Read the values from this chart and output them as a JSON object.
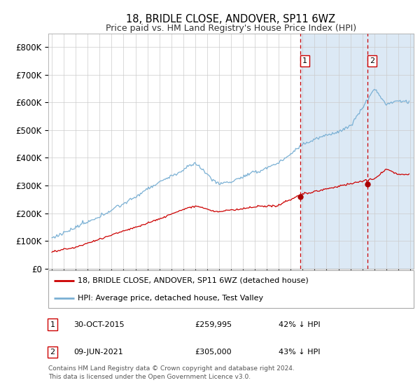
{
  "title": "18, BRIDLE CLOSE, ANDOVER, SP11 6WZ",
  "subtitle": "Price paid vs. HM Land Registry's House Price Index (HPI)",
  "legend_line1": "18, BRIDLE CLOSE, ANDOVER, SP11 6WZ (detached house)",
  "legend_line2": "HPI: Average price, detached house, Test Valley",
  "transaction1_date": "30-OCT-2015",
  "transaction1_price": "£259,995",
  "transaction1_pct": "42% ↓ HPI",
  "transaction2_date": "09-JUN-2021",
  "transaction2_price": "£305,000",
  "transaction2_pct": "43% ↓ HPI",
  "footer": "Contains HM Land Registry data © Crown copyright and database right 2024.\nThis data is licensed under the Open Government Licence v3.0.",
  "hpi_color": "#7ab0d4",
  "price_color": "#cc0000",
  "highlight_bg": "#dce9f5",
  "vline_color": "#cc0000",
  "dot_color": "#aa0000",
  "ylim": [
    0,
    850000
  ],
  "yticks": [
    0,
    100000,
    200000,
    300000,
    400000,
    500000,
    600000,
    700000,
    800000
  ],
  "start_year": 1995,
  "end_year": 2025,
  "transaction1_year": 2015.83,
  "transaction2_year": 2021.44,
  "transaction1_price_val": 259995,
  "transaction2_price_val": 305000
}
